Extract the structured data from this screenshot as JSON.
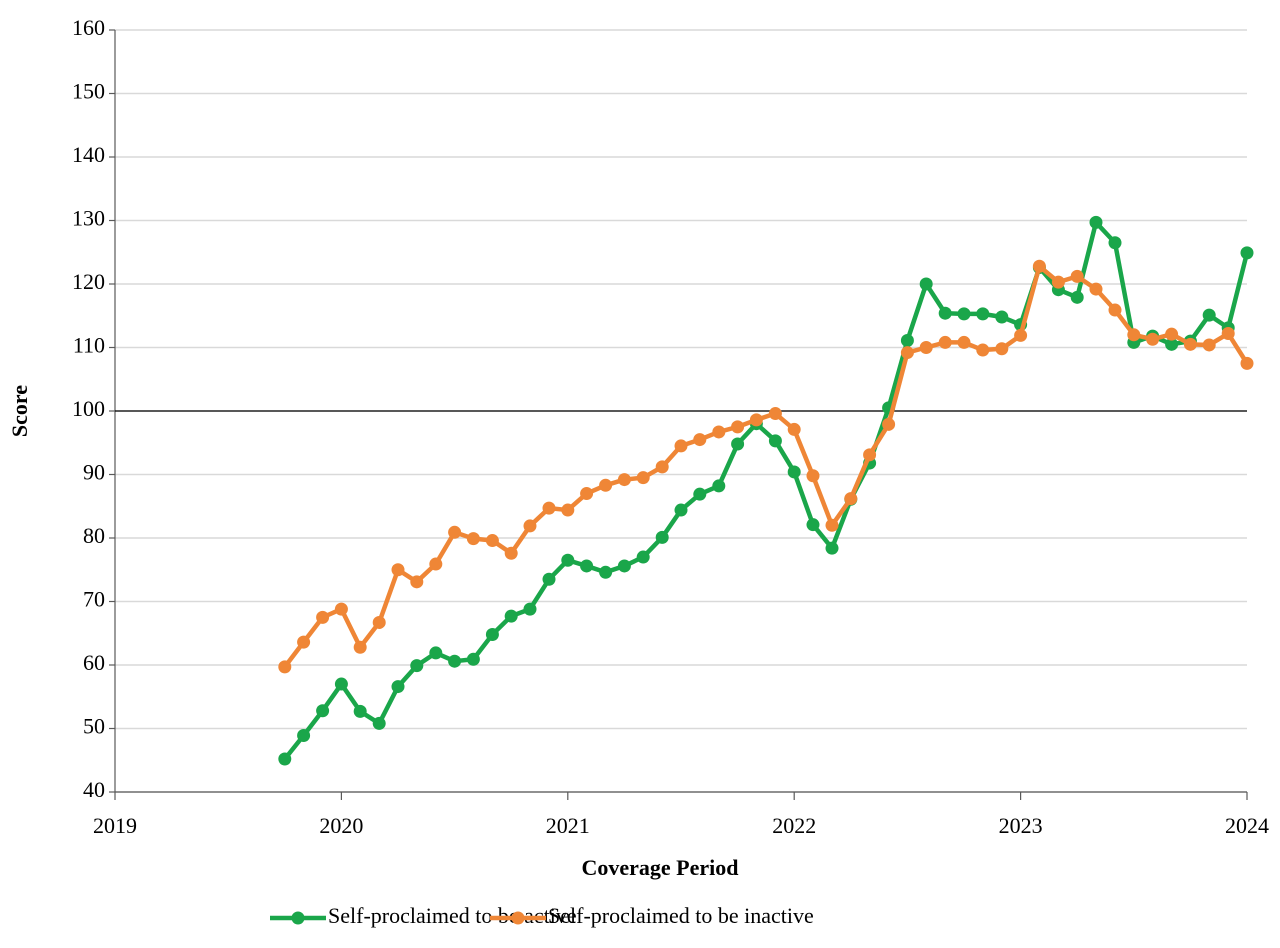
{
  "chart_data": {
    "type": "line",
    "xlabel": "Coverage Period",
    "ylabel": "Score",
    "x": [
      2019.75,
      2019.833,
      2019.917,
      2020,
      2020.083,
      2020.167,
      2020.25,
      2020.333,
      2020.417,
      2020.5,
      2020.583,
      2020.667,
      2020.75,
      2020.833,
      2020.917,
      2021,
      2021.083,
      2021.167,
      2021.25,
      2021.333,
      2021.417,
      2021.5,
      2021.583,
      2021.667,
      2021.75,
      2021.833,
      2021.917,
      2022,
      2022.083,
      2022.167,
      2022.25,
      2022.333,
      2022.417,
      2022.5,
      2022.583,
      2022.667,
      2022.75,
      2022.833,
      2022.917,
      2023,
      2023.083,
      2023.167,
      2023.25,
      2023.333,
      2023.417,
      2023.5,
      2023.583,
      2023.667,
      2023.75,
      2023.833,
      2023.917,
      2024
    ],
    "series": [
      {
        "name": "Self-proclaimed to be active",
        "color": "#1aa64a",
        "values": [
          45.2,
          48.9,
          52.8,
          57.0,
          52.7,
          50.8,
          56.6,
          59.9,
          61.9,
          60.6,
          60.9,
          64.8,
          67.7,
          68.8,
          73.5,
          76.5,
          75.6,
          74.6,
          75.6,
          77.0,
          80.1,
          84.4,
          86.9,
          88.2,
          94.8,
          98.0,
          95.3,
          90.4,
          82.1,
          78.4,
          86.1,
          91.8,
          100.5,
          111.1,
          120.0,
          115.4,
          115.3,
          115.3,
          114.8,
          113.6,
          122.6,
          119.1,
          117.9,
          129.7,
          126.5,
          110.8,
          111.8,
          110.5,
          111.0,
          115.1,
          113.1,
          124.9
        ]
      },
      {
        "name": "Self-proclaimed to be inactive",
        "color": "#ef8636",
        "values": [
          59.7,
          63.6,
          67.5,
          68.8,
          62.8,
          66.7,
          75.0,
          73.1,
          75.9,
          80.9,
          79.9,
          79.6,
          77.6,
          81.9,
          84.7,
          84.4,
          87.0,
          88.3,
          89.2,
          89.5,
          91.2,
          94.5,
          95.5,
          96.7,
          97.5,
          98.6,
          99.6,
          97.1,
          89.8,
          82.0,
          86.2,
          93.1,
          97.9,
          109.2,
          110.0,
          110.8,
          110.8,
          109.6,
          109.8,
          111.9,
          122.8,
          120.3,
          121.2,
          119.2,
          115.9,
          112.0,
          111.3,
          112.1,
          110.5,
          110.4,
          112.2,
          107.5
        ]
      }
    ],
    "xlim": [
      2019,
      2024
    ],
    "xticks": [
      2019,
      2020,
      2021,
      2022,
      2023,
      2024
    ],
    "ylim": [
      40,
      160
    ],
    "yticks": [
      40,
      50,
      60,
      70,
      80,
      90,
      100,
      110,
      120,
      130,
      140,
      150,
      160
    ],
    "grid": true,
    "reference_line": 100,
    "legend": "bottom"
  }
}
